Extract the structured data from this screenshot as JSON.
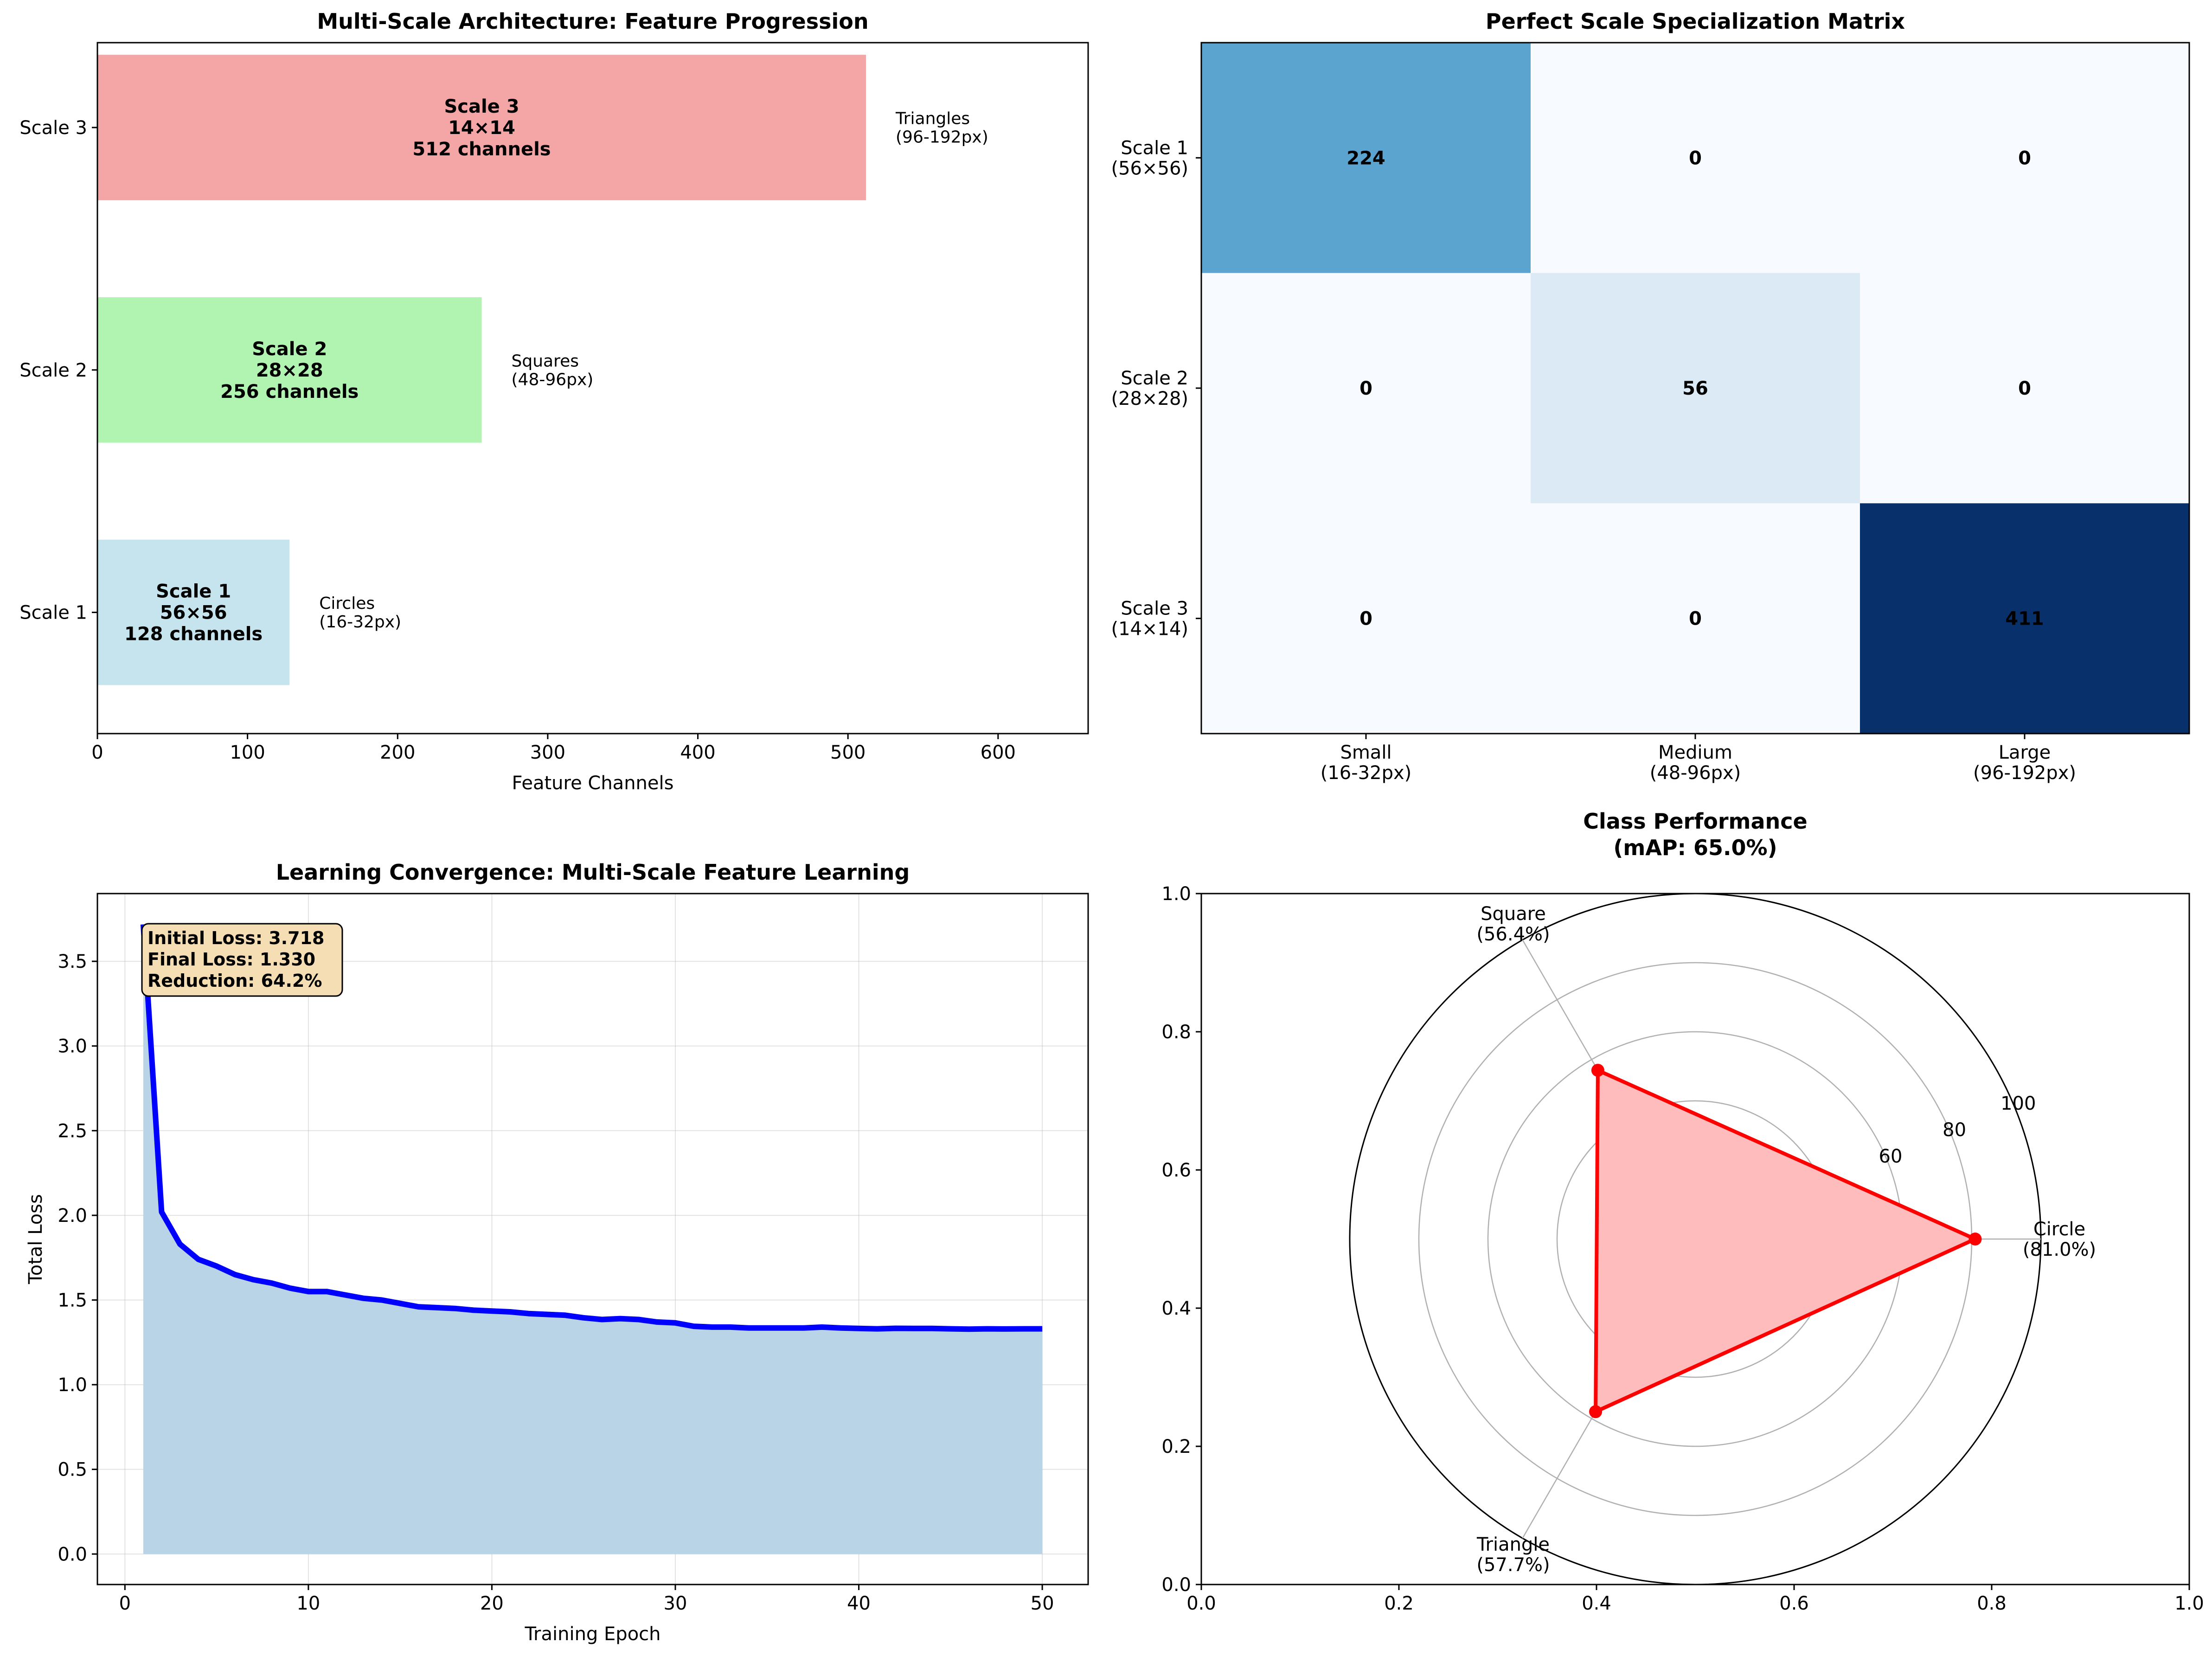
{
  "chart_data": [
    {
      "type": "bar",
      "orientation": "horizontal",
      "title": "Multi-Scale Architecture: Feature Progression",
      "xlabel": "Feature Channels",
      "ylabel": "",
      "xlim": [
        0,
        660
      ],
      "xticks": [
        "0",
        "100",
        "200",
        "300",
        "400",
        "500",
        "600"
      ],
      "categories": [
        "Scale 1",
        "Scale 2",
        "Scale 3"
      ],
      "values": [
        128,
        256,
        512
      ],
      "colors": [
        "#add8e6",
        "#90ee90",
        "#f08080"
      ],
      "bar_labels": [
        [
          "Scale 1",
          "56×56",
          "128 channels"
        ],
        [
          "Scale 2",
          "28×28",
          "256 channels"
        ],
        [
          "Scale 3",
          "14×14",
          "512 channels"
        ]
      ],
      "annotations": [
        [
          "Circles",
          "(16-32px)"
        ],
        [
          "Squares",
          "(48-96px)"
        ],
        [
          "Triangles",
          "(96-192px)"
        ]
      ]
    },
    {
      "type": "heatmap",
      "title": "Perfect Scale Specialization Matrix",
      "row_labels": [
        [
          "Scale 1",
          "(56×56)"
        ],
        [
          "Scale 2",
          "(28×28)"
        ],
        [
          "Scale 3",
          "(14×14)"
        ]
      ],
      "col_labels": [
        [
          "Small",
          "(16-32px)"
        ],
        [
          "Medium",
          "(48-96px)"
        ],
        [
          "Large",
          "(96-192px)"
        ]
      ],
      "values": [
        [
          224,
          0,
          0
        ],
        [
          0,
          56,
          0
        ],
        [
          0,
          0,
          411
        ]
      ],
      "colormap": "Blues"
    },
    {
      "type": "area",
      "title": "Learning Convergence: Multi-Scale Feature Learning",
      "xlabel": "Training Epoch",
      "ylabel": "Total Loss",
      "xlim": [
        -1.5,
        52.5
      ],
      "ylim": [
        -0.18,
        3.9
      ],
      "xticks": [
        "0",
        "10",
        "20",
        "30",
        "40",
        "50"
      ],
      "yticks": [
        "0.0",
        "0.5",
        "1.0",
        "1.5",
        "2.0",
        "2.5",
        "3.0",
        "3.5"
      ],
      "grid": true,
      "line_color": "#0000ff",
      "fill_color": "#b8d4e6",
      "x": [
        1,
        2,
        3,
        4,
        5,
        6,
        7,
        8,
        9,
        10,
        11,
        12,
        13,
        14,
        15,
        16,
        17,
        18,
        19,
        20,
        21,
        22,
        23,
        24,
        25,
        26,
        27,
        28,
        29,
        30,
        31,
        32,
        33,
        34,
        35,
        36,
        37,
        38,
        39,
        40,
        41,
        42,
        43,
        44,
        45,
        46,
        47,
        48,
        49,
        50
      ],
      "y": [
        3.718,
        2.02,
        1.83,
        1.74,
        1.7,
        1.65,
        1.62,
        1.6,
        1.57,
        1.55,
        1.55,
        1.53,
        1.51,
        1.5,
        1.48,
        1.46,
        1.455,
        1.45,
        1.44,
        1.435,
        1.43,
        1.42,
        1.415,
        1.41,
        1.395,
        1.385,
        1.39,
        1.385,
        1.37,
        1.365,
        1.345,
        1.34,
        1.34,
        1.335,
        1.335,
        1.335,
        1.335,
        1.34,
        1.335,
        1.332,
        1.33,
        1.333,
        1.332,
        1.332,
        1.33,
        1.328,
        1.33,
        1.329,
        1.33,
        1.33
      ],
      "infobox": [
        "Initial Loss: 3.718",
        "Final Loss: 1.330",
        "Reduction: 64.2%"
      ]
    },
    {
      "type": "radar",
      "title": [
        "Class Performance",
        "(mAP: 65.0%)"
      ],
      "categories": [
        "Circle",
        "Square",
        "Triangle"
      ],
      "category_labels": [
        [
          "Circle",
          "(81.0%)"
        ],
        [
          "Square",
          "(56.4%)"
        ],
        [
          "Triangle",
          "(57.7%)"
        ]
      ],
      "values": [
        81.0,
        56.4,
        57.7
      ],
      "rmax": 100,
      "rticks": [
        "20",
        "40",
        "60",
        "80",
        "100"
      ],
      "cartesian_xticks": [
        "0.0",
        "0.2",
        "0.4",
        "0.6",
        "0.8",
        "1.0"
      ],
      "cartesian_yticks": [
        "0.0",
        "0.2",
        "0.4",
        "0.6",
        "0.8",
        "1.0"
      ],
      "line_color": "#ff0000",
      "fill_color": "#ffbcbc"
    }
  ]
}
